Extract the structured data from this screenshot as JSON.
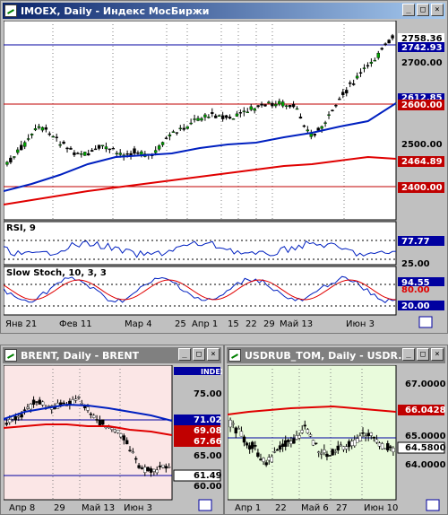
{
  "windows": {
    "main": {
      "title": "IMOEX, Daily - Индекс МосБиржи",
      "price_labels": [
        "2758.36",
        "2742.93",
        "2700.00",
        "2612.85",
        "2600.00",
        "2500.00",
        "2464.89",
        "2400.00"
      ],
      "rsi_title": "RSI, 9",
      "rsi_labels": [
        "77.77",
        "25.00"
      ],
      "stoch_title": "Slow Stoch, 10, 3, 3",
      "stoch_labels": [
        "94.55",
        "80.00",
        "20.00"
      ],
      "dates": [
        "Янв 21",
        "Фев 11",
        "Мар 4",
        "25",
        "Апр 1",
        "15",
        "22",
        "29",
        "Май 13",
        "Июн 3"
      ]
    },
    "brent": {
      "title": "BRENT, Daily - BRENT",
      "index_label": "INDEX",
      "price_labels": [
        "75.00",
        "71.02",
        "69.08",
        "67.66",
        "65.00",
        "61.49",
        "60.00"
      ],
      "dates": [
        "Апр 8",
        "29",
        "Май 13",
        "Июн 3"
      ]
    },
    "usdrub": {
      "title": "USDRUB_TOM, Daily - USDR...",
      "price_labels": [
        "67.0000",
        "66.0428",
        "65.0000",
        "64.5800",
        "64.0000"
      ],
      "dates": [
        "Апр 1",
        "22",
        "Май 6",
        "27",
        "Июн 10"
      ]
    }
  },
  "buttons": {
    "minimize": "_",
    "maximize": "□",
    "close": "×"
  },
  "colors": {
    "main_bg": "#ffffff",
    "brent_bg": "#fbe6e6",
    "usdrub_bg": "#e9fbdc",
    "up": "#00a000",
    "down": "#000000",
    "ma_fast": "#0020c0",
    "ma_slow": "#e00000",
    "hline_blue": "#0000a0",
    "hline_red": "#c00000"
  }
}
